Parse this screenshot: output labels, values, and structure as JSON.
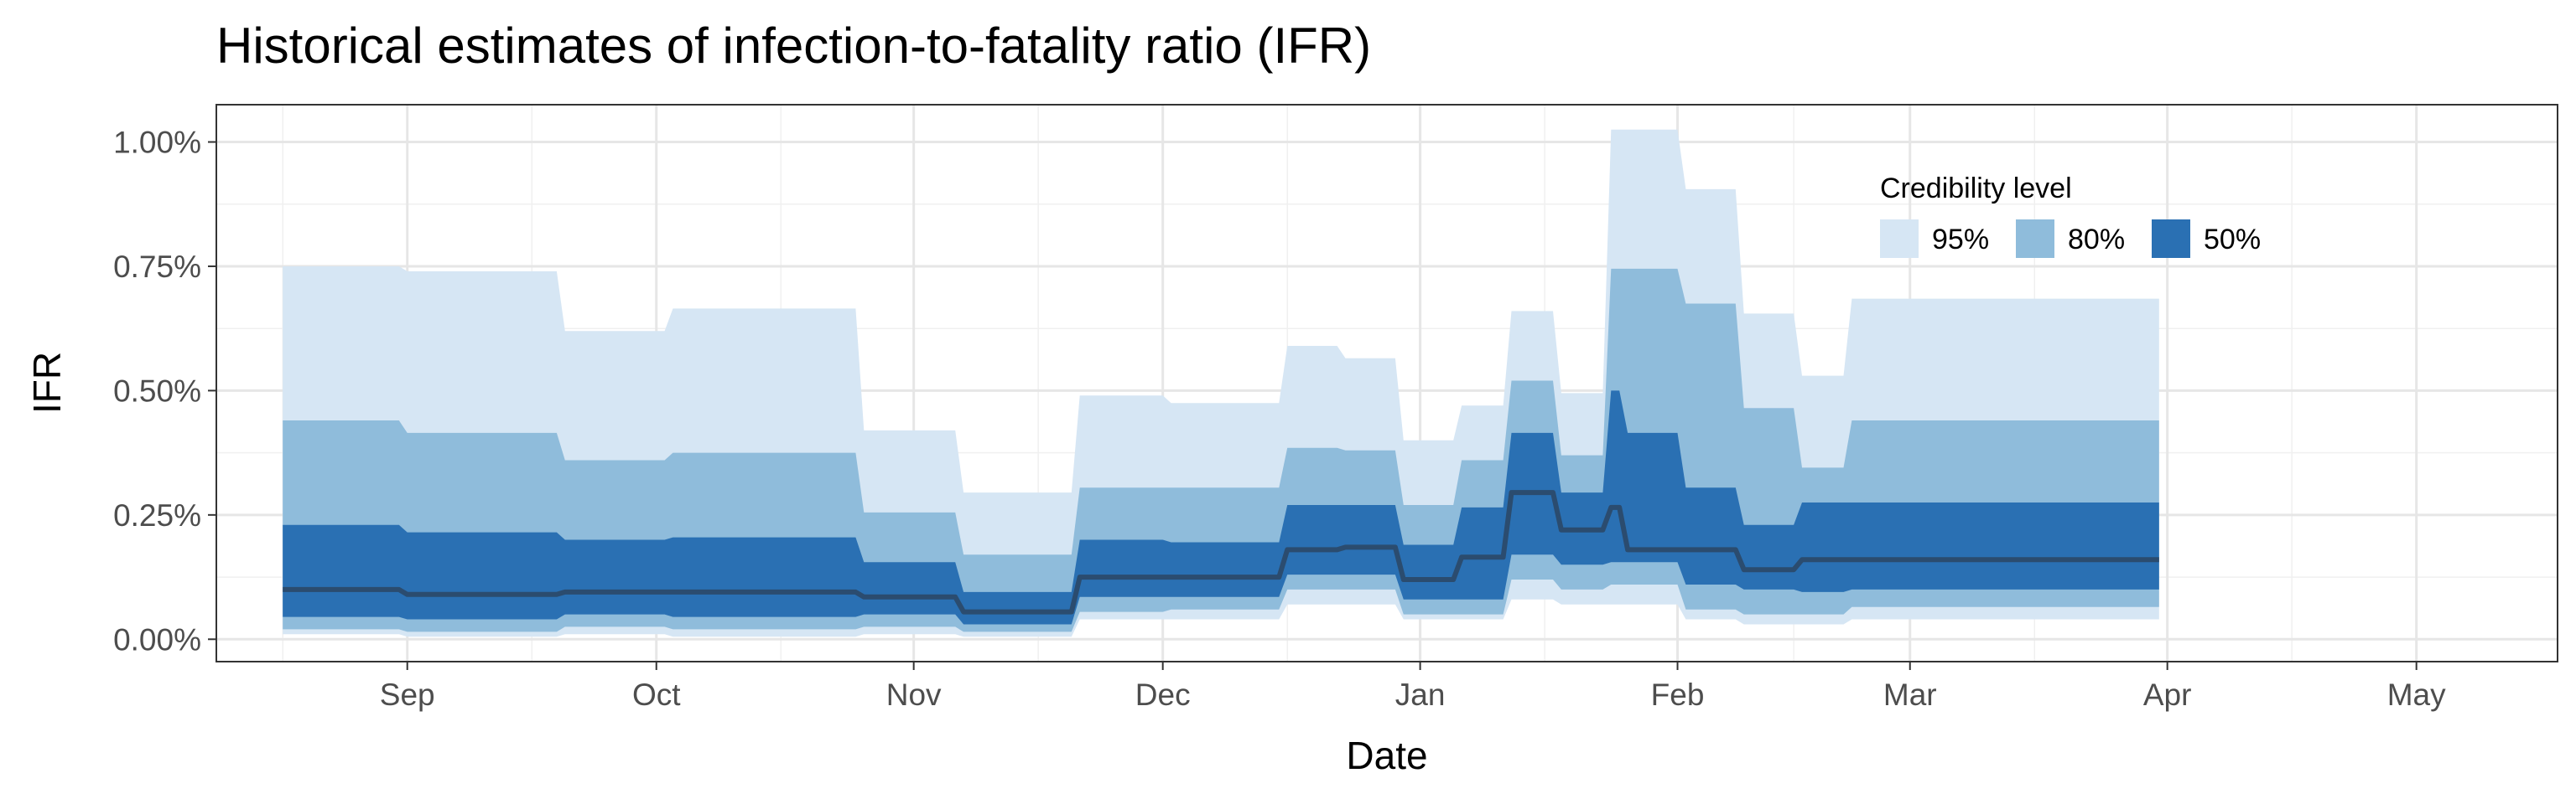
{
  "chart_data": {
    "type": "area",
    "title": "Historical estimates of infection-to-fatality ratio (IFR)",
    "xlabel": "Date",
    "ylabel": "IFR",
    "x_axis": {
      "range": [
        "2020-08-09",
        "2021-05-18"
      ],
      "ticks": [
        {
          "date": "2020-09-01",
          "label": "Sep"
        },
        {
          "date": "2020-10-01",
          "label": "Oct"
        },
        {
          "date": "2020-11-01",
          "label": "Nov"
        },
        {
          "date": "2020-12-01",
          "label": "Dec"
        },
        {
          "date": "2021-01-01",
          "label": "Jan"
        },
        {
          "date": "2021-02-01",
          "label": "Feb"
        },
        {
          "date": "2021-03-01",
          "label": "Mar"
        },
        {
          "date": "2021-04-01",
          "label": "Apr"
        },
        {
          "date": "2021-05-01",
          "label": "May"
        }
      ]
    },
    "y_axis": {
      "range": [
        -0.045,
        1.075
      ],
      "ticks": [
        {
          "value": 0.0,
          "label": "0.00%"
        },
        {
          "value": 0.25,
          "label": "0.25%"
        },
        {
          "value": 0.5,
          "label": "0.50%"
        },
        {
          "value": 0.75,
          "label": "0.75%"
        },
        {
          "value": 1.0,
          "label": "1.00%"
        }
      ]
    },
    "grid": true,
    "legend": {
      "title": "Credibility level",
      "position": "top-right",
      "items": [
        {
          "label": "95%",
          "color": "#d6e6f4"
        },
        {
          "label": "80%",
          "color": "#8fbcdb"
        },
        {
          "label": "50%",
          "color": "#2a70b3"
        }
      ]
    },
    "median_color": "#2b4c6f",
    "dates": [
      "2020-08-17",
      "2020-08-31",
      "2020-09-01",
      "2020-09-19",
      "2020-09-20",
      "2020-10-02",
      "2020-10-03",
      "2020-10-25",
      "2020-10-26",
      "2020-11-06",
      "2020-11-07",
      "2020-11-20",
      "2020-11-21",
      "2020-12-01",
      "2020-12-02",
      "2020-12-15",
      "2020-12-16",
      "2020-12-22",
      "2020-12-23",
      "2020-12-29",
      "2020-12-30",
      "2021-01-05",
      "2021-01-06",
      "2021-01-11",
      "2021-01-12",
      "2021-01-17",
      "2021-01-18",
      "2021-01-23",
      "2021-01-24",
      "2021-01-25",
      "2021-01-26",
      "2021-02-01",
      "2021-02-02",
      "2021-02-08",
      "2021-02-09",
      "2021-02-15",
      "2021-02-16",
      "2021-02-21",
      "2021-02-22",
      "2021-03-31"
    ],
    "series": [
      {
        "name": "95%",
        "lower": [
          0.01,
          0.01,
          0.005,
          0.005,
          0.01,
          0.01,
          0.005,
          0.005,
          0.01,
          0.01,
          0.005,
          0.005,
          0.04,
          0.04,
          0.04,
          0.04,
          0.07,
          0.07,
          0.07,
          0.07,
          0.04,
          0.04,
          0.04,
          0.04,
          0.08,
          0.08,
          0.07,
          0.07,
          0.07,
          0.07,
          0.07,
          0.07,
          0.04,
          0.04,
          0.03,
          0.03,
          0.03,
          0.03,
          0.04,
          0.04
        ],
        "upper": [
          0.75,
          0.75,
          0.74,
          0.74,
          0.62,
          0.62,
          0.665,
          0.665,
          0.42,
          0.42,
          0.295,
          0.295,
          0.49,
          0.49,
          0.475,
          0.475,
          0.59,
          0.59,
          0.565,
          0.565,
          0.4,
          0.4,
          0.47,
          0.47,
          0.66,
          0.66,
          0.495,
          0.495,
          1.025,
          1.025,
          1.025,
          1.025,
          0.905,
          0.905,
          0.655,
          0.655,
          0.53,
          0.53,
          0.685,
          0.685
        ]
      },
      {
        "name": "80%",
        "lower": [
          0.02,
          0.02,
          0.015,
          0.015,
          0.025,
          0.025,
          0.02,
          0.02,
          0.025,
          0.025,
          0.015,
          0.015,
          0.055,
          0.055,
          0.06,
          0.06,
          0.1,
          0.1,
          0.1,
          0.1,
          0.05,
          0.05,
          0.05,
          0.05,
          0.12,
          0.12,
          0.1,
          0.1,
          0.11,
          0.11,
          0.11,
          0.11,
          0.06,
          0.06,
          0.05,
          0.05,
          0.05,
          0.05,
          0.065,
          0.065
        ],
        "upper": [
          0.44,
          0.44,
          0.415,
          0.415,
          0.36,
          0.36,
          0.375,
          0.375,
          0.255,
          0.255,
          0.17,
          0.17,
          0.305,
          0.305,
          0.305,
          0.305,
          0.385,
          0.385,
          0.38,
          0.38,
          0.27,
          0.27,
          0.36,
          0.36,
          0.52,
          0.52,
          0.37,
          0.37,
          0.745,
          0.745,
          0.745,
          0.745,
          0.675,
          0.675,
          0.465,
          0.465,
          0.345,
          0.345,
          0.44,
          0.44
        ]
      },
      {
        "name": "50%",
        "lower": [
          0.045,
          0.045,
          0.04,
          0.04,
          0.05,
          0.05,
          0.045,
          0.045,
          0.05,
          0.05,
          0.03,
          0.03,
          0.085,
          0.085,
          0.085,
          0.085,
          0.13,
          0.13,
          0.13,
          0.13,
          0.08,
          0.08,
          0.08,
          0.08,
          0.17,
          0.17,
          0.15,
          0.15,
          0.155,
          0.155,
          0.155,
          0.155,
          0.11,
          0.11,
          0.1,
          0.1,
          0.095,
          0.095,
          0.1,
          0.1
        ],
        "upper": [
          0.23,
          0.23,
          0.215,
          0.215,
          0.2,
          0.2,
          0.205,
          0.205,
          0.155,
          0.155,
          0.095,
          0.095,
          0.2,
          0.2,
          0.195,
          0.195,
          0.27,
          0.27,
          0.27,
          0.27,
          0.19,
          0.19,
          0.265,
          0.265,
          0.415,
          0.415,
          0.295,
          0.295,
          0.5,
          0.5,
          0.415,
          0.415,
          0.305,
          0.305,
          0.23,
          0.23,
          0.275,
          0.275,
          0.275,
          0.275
        ]
      },
      {
        "name": "median",
        "values": [
          0.1,
          0.1,
          0.09,
          0.09,
          0.095,
          0.095,
          0.095,
          0.095,
          0.085,
          0.085,
          0.055,
          0.055,
          0.125,
          0.125,
          0.125,
          0.125,
          0.18,
          0.18,
          0.185,
          0.185,
          0.12,
          0.12,
          0.165,
          0.165,
          0.295,
          0.295,
          0.22,
          0.22,
          0.265,
          0.265,
          0.18,
          0.18,
          0.18,
          0.18,
          0.14,
          0.14,
          0.16,
          0.16,
          0.16,
          0.16
        ]
      }
    ]
  }
}
